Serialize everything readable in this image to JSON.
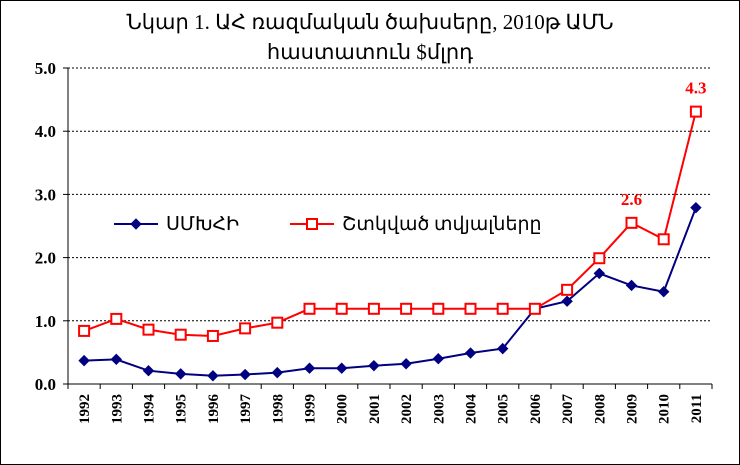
{
  "chart_data": {
    "type": "line",
    "title_line1": "Նկար 1. ԱՀ ռազմական ծախսերը, 2010թ ԱՄՆ",
    "title_line2": "հաստատուն $մլրդ",
    "xlabel": "",
    "ylabel": "",
    "ylim": [
      0,
      5
    ],
    "yticks": [
      "0.0",
      "1.0",
      "2.0",
      "3.0",
      "4.0",
      "5.0"
    ],
    "categories": [
      "1992",
      "1993",
      "1994",
      "1995",
      "1996",
      "1997",
      "1998",
      "1999",
      "2000",
      "2001",
      "2002",
      "2003",
      "2004",
      "2005",
      "2006",
      "2007",
      "2008",
      "2009",
      "2010",
      "2011"
    ],
    "series": [
      {
        "name": "ՍՄԽՀԻ",
        "color": "#000080",
        "marker": "diamond",
        "values": [
          0.37,
          0.39,
          0.21,
          0.16,
          0.13,
          0.15,
          0.18,
          0.25,
          0.25,
          0.29,
          0.32,
          0.4,
          0.49,
          0.56,
          1.19,
          1.31,
          1.75,
          1.56,
          1.46,
          2.79
        ]
      },
      {
        "name": "Շտկված տվյալները",
        "color": "#ff0000",
        "marker": "square",
        "values": [
          0.84,
          1.03,
          0.86,
          0.78,
          0.76,
          0.88,
          0.97,
          1.19,
          1.19,
          1.19,
          1.19,
          1.19,
          1.19,
          1.19,
          1.19,
          1.49,
          1.99,
          2.55,
          2.29,
          4.31
        ]
      }
    ],
    "data_labels": [
      {
        "series": 1,
        "index": 17,
        "text": "2.6"
      },
      {
        "series": 1,
        "index": 19,
        "text": "4.3"
      }
    ],
    "grid": true,
    "legend_position": "left-middle"
  }
}
